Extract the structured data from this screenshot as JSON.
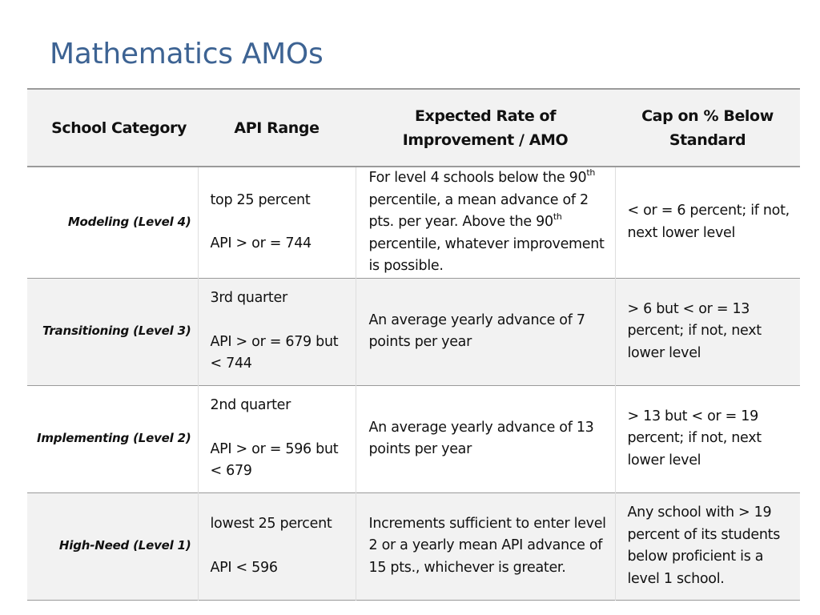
{
  "slide": {
    "title": "Mathematics AMOs"
  },
  "table": {
    "headers": {
      "category": "School Category",
      "api_range": "API Range",
      "expected_line1": "Expected Rate of",
      "expected_line2": "Improvement / AMO",
      "cap_line1": "Cap on % Below",
      "cap_line2": "Standard"
    },
    "rows": [
      {
        "category": "Modeling (Level 4)",
        "range_line1": "top  25 percent",
        "range_line2": "API > or = 744",
        "expected_a": "For level 4 schools below the 90",
        "expected_sup1": "th",
        "expected_b": " percentile, a mean advance of 2 pts. per year.  Above the 90",
        "expected_sup2": "th",
        "expected_c": " percentile, whatever improvement is possible.",
        "cap": "< or =  6 percent; if not, next lower level"
      },
      {
        "category": "Transitioning (Level 3)",
        "range_line1": "3rd  quarter",
        "range_line2": "API > or = 679 but < 744",
        "expected": "An average yearly advance of 7 points per year",
        "cap": "> 6 but < or = 13 percent; if not, next lower level"
      },
      {
        "category": "Implementing (Level 2)",
        "range_line1": "2nd  quarter",
        "range_line2": "API > or = 596 but < 679",
        "expected": "An average  yearly advance of 13 points per year",
        "cap": "> 13 but < or = 19 percent; if not, next lower level"
      },
      {
        "category": "High-Need (Level 1)",
        "range_line1": "lowest  25 percent",
        "range_line2": " API < 596",
        "expected": "Increments sufficient to enter level 2 or a yearly mean API advance of 15 pts., whichever is greater.",
        "cap": "Any school with > 19 percent of its students below proficient is a level 1 school."
      }
    ]
  }
}
